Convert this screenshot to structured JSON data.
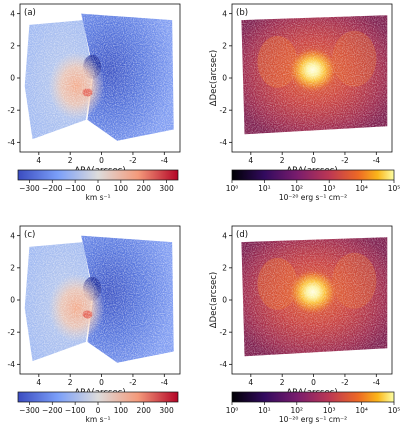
{
  "chart_data": [
    {
      "panel": "(a)",
      "type": "heatmap",
      "quantity": "velocity",
      "xlabel": "ΔRA(arcsec)",
      "ylabel": "",
      "xticks": [
        "4",
        "2",
        "0",
        "-2",
        "-4"
      ],
      "yticks": [
        "4",
        "2",
        "0",
        "-2",
        "-4"
      ],
      "xlim": [
        5.2,
        -5.0
      ],
      "ylim": [
        -4.6,
        4.6
      ],
      "x_reversed": true,
      "colormap": "coolwarm",
      "colorbar": {
        "scale": "linear",
        "range": [
          -350,
          350
        ],
        "ticks": [
          "−300",
          "−200",
          "−100",
          "0",
          "100",
          "200",
          "300"
        ],
        "label": "km s⁻¹"
      },
      "features": [
        {
          "region": "east (x>0)",
          "value_kms": -100,
          "note": "pale blue"
        },
        {
          "region": "west (x<0)",
          "value_kms": -220,
          "note": "blue, darkest at x≈1, y≈0.6"
        },
        {
          "region": "nucleus x≈1.5..0.5, y≈-0.5",
          "value_kms": 60,
          "note": "light orange/red"
        }
      ]
    },
    {
      "panel": "(b)",
      "type": "heatmap",
      "quantity": "flux",
      "xlabel": "ΔRA(arcsec)",
      "ylabel": "ΔDec(arcsec)",
      "xticks": [
        "4",
        "2",
        "0",
        "-2",
        "-4"
      ],
      "yticks": [
        "4",
        "2",
        "0",
        "-2",
        "-4"
      ],
      "xlim": [
        5.2,
        -5.0
      ],
      "ylim": [
        -4.6,
        4.6
      ],
      "x_reversed": true,
      "colormap": "inferno",
      "colorbar": {
        "scale": "log",
        "range": [
          1,
          100000
        ],
        "ticks": [
          "10⁰",
          "10¹",
          "10²",
          "10³",
          "10⁴",
          "10⁵"
        ],
        "label": "10⁻²⁰ erg s⁻¹ cm⁻²"
      },
      "features": [
        {
          "region": "nucleus x≈0, y≈0.5",
          "note": "bright yellow-white peak"
        },
        {
          "region": "surroundings",
          "note": "orange-red emission filling the field"
        }
      ]
    },
    {
      "panel": "(c)",
      "type": "heatmap",
      "quantity": "velocity",
      "xlabel": "ΔRA(arcsec)",
      "ylabel": "",
      "xticks": [
        "4",
        "2",
        "0",
        "-2",
        "-4"
      ],
      "yticks": [
        "4",
        "2",
        "0",
        "-2",
        "-4"
      ],
      "xlim": [
        5.2,
        -5.0
      ],
      "ylim": [
        -4.6,
        4.6
      ],
      "x_reversed": true,
      "colormap": "coolwarm",
      "colorbar": {
        "scale": "linear",
        "range": [
          -350,
          350
        ],
        "ticks": [
          "−300",
          "−200",
          "−100",
          "0",
          "100",
          "200",
          "300"
        ],
        "label": "km s⁻¹"
      }
    },
    {
      "panel": "(d)",
      "type": "heatmap",
      "quantity": "flux",
      "xlabel": "ΔRA(arcsec)",
      "ylabel": "ΔDec(arcsec)",
      "xticks": [
        "4",
        "2",
        "0",
        "-2",
        "-4"
      ],
      "yticks": [
        "4",
        "2",
        "0",
        "-2",
        "-4"
      ],
      "xlim": [
        5.2,
        -5.0
      ],
      "ylim": [
        -4.6,
        4.6
      ],
      "x_reversed": true,
      "colormap": "inferno",
      "colorbar": {
        "scale": "log",
        "range": [
          1,
          100000
        ],
        "ticks": [
          "10⁰",
          "10¹",
          "10²",
          "10³",
          "10⁴",
          "10⁵"
        ],
        "label": "10⁻²⁰ erg s⁻¹ cm⁻²"
      }
    }
  ]
}
